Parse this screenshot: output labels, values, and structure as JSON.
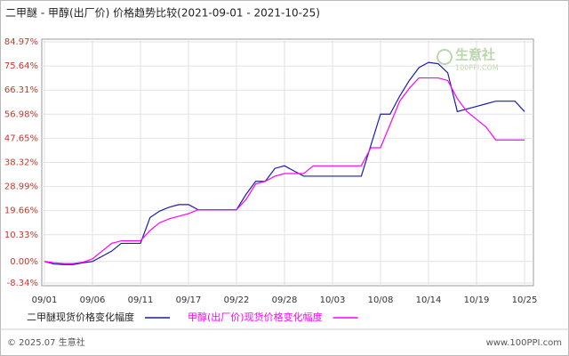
{
  "chart_data": {
    "type": "line",
    "title": "二甲醚 - 甲醇(出厂价) 价格趋势比较(2021-09-01 - 2021-10-25)",
    "categories": [
      "09/01",
      null,
      null,
      null,
      null,
      "09/06",
      null,
      null,
      null,
      null,
      "09/11",
      null,
      null,
      null,
      null,
      "09/17",
      null,
      null,
      null,
      null,
      "09/22",
      null,
      null,
      null,
      null,
      "09/28",
      null,
      null,
      null,
      null,
      "10/03",
      null,
      null,
      null,
      null,
      "10/08",
      null,
      null,
      null,
      null,
      "10/14",
      null,
      null,
      null,
      null,
      "10/19",
      null,
      null,
      null,
      null,
      "10/25"
    ],
    "series": [
      {
        "name": "二甲醚现货价格变化幅度",
        "color": "#1c1ca8",
        "values": [
          0,
          -1,
          -1.2,
          -1.2,
          -0.5,
          0,
          2,
          4,
          7,
          7,
          7,
          17,
          19.5,
          21,
          22,
          22,
          20,
          20,
          20,
          20,
          20,
          26,
          31,
          31,
          36,
          37,
          35,
          33,
          33,
          33,
          33,
          33,
          33,
          33,
          45,
          57,
          57,
          64,
          70,
          75,
          77,
          76.5,
          73,
          58,
          59,
          60,
          61,
          62,
          62,
          62,
          58
        ]
      },
      {
        "name": "甲醇(出厂价)现货价格变化幅度",
        "color": "#ff00ff",
        "values": [
          0,
          -0.5,
          -0.8,
          -0.8,
          -0.3,
          1,
          4,
          7,
          8,
          8,
          8,
          12,
          15,
          16.5,
          17.5,
          18.5,
          20,
          20,
          20,
          20,
          20,
          24,
          30,
          31,
          33,
          34,
          34,
          34,
          37,
          37,
          37,
          37,
          37,
          37,
          44,
          44,
          53,
          62,
          67,
          71,
          71,
          71,
          70,
          63,
          58,
          55,
          52,
          47,
          47,
          47,
          47
        ]
      }
    ],
    "ylim": [
      -8.34,
      84.97
    ],
    "yticks": [
      {
        "value": 84.97,
        "label": "84.97%"
      },
      {
        "value": 75.64,
        "label": "75.64%"
      },
      {
        "value": 66.31,
        "label": "66.31%"
      },
      {
        "value": 56.98,
        "label": "56.98%"
      },
      {
        "value": 47.65,
        "label": "47.65%"
      },
      {
        "value": 38.32,
        "label": "38.32%"
      },
      {
        "value": 28.99,
        "label": "28.99%"
      },
      {
        "value": 19.66,
        "label": "19.66%"
      },
      {
        "value": 10.33,
        "label": "10.33%"
      },
      {
        "value": 0,
        "label": "0.00%"
      },
      {
        "value": -8.34,
        "label": "-8.34%"
      }
    ],
    "grid": true,
    "watermark": "生意社",
    "watermark_sub": "100PPI.COM",
    "footer_left": "© 2025.07 生意社",
    "footer_right": "www.100PPI.com"
  }
}
